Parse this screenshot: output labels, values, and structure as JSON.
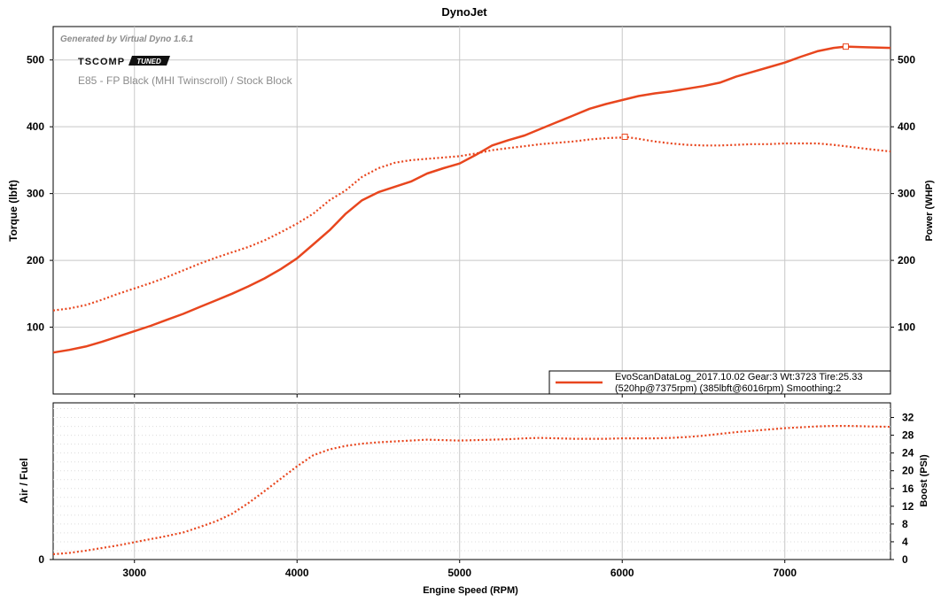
{
  "title": "DynoJet",
  "generated_by": "Generated by Virtual Dyno 1.6.1",
  "logo": {
    "left": "TSCOMP",
    "right": "TUNED"
  },
  "subtitle": "E85 - FP Black (MHI Twinscroll) / Stock Block",
  "legend": {
    "line1": "EvoScanDataLog_2017.10.02 Gear:3 Wt:3723 Tire:25.33",
    "line2": "(520hp@7375rpm) (385lbft@6016rpm) Smoothing:2"
  },
  "colors": {
    "series": "#e8461e",
    "grid_major": "#c8c8c8",
    "grid_minor": "#dcdcdc",
    "axis": "#000000"
  },
  "chart_data": [
    {
      "type": "line",
      "xlabel": "",
      "ylabel": "Torque (lbft)",
      "y2label": "Power (WHP)",
      "xlim": [
        2500,
        7650
      ],
      "ylim": [
        0,
        550
      ],
      "y2lim": [
        0,
        550
      ],
      "xticks": [
        3000,
        4000,
        5000,
        6000,
        7000
      ],
      "yticks": [
        100,
        200,
        300,
        400,
        500
      ],
      "y2ticks": [
        100,
        200,
        300,
        400,
        500
      ],
      "grid": true,
      "legend_position": "bottom-right",
      "series": [
        {
          "style": "solid",
          "axis": "left",
          "x": [
            2500,
            2600,
            2700,
            2800,
            2900,
            3000,
            3100,
            3200,
            3300,
            3400,
            3500,
            3600,
            3700,
            3800,
            3900,
            4000,
            4100,
            4200,
            4300,
            4400,
            4500,
            4600,
            4700,
            4800,
            4900,
            5000,
            5100,
            5200,
            5300,
            5400,
            5500,
            5600,
            5700,
            5800,
            5900,
            6000,
            6100,
            6200,
            6300,
            6400,
            6500,
            6600,
            6700,
            6800,
            6900,
            7000,
            7100,
            7200,
            7300,
            7375,
            7500,
            7650
          ],
          "y": [
            62,
            66,
            71,
            78,
            86,
            94,
            102,
            111,
            120,
            130,
            140,
            150,
            161,
            173,
            187,
            203,
            224,
            245,
            270,
            290,
            302,
            310,
            318,
            330,
            338,
            345,
            358,
            372,
            380,
            387,
            397,
            407,
            417,
            427,
            434,
            440,
            446,
            450,
            453,
            457,
            461,
            466,
            475,
            482,
            489,
            496,
            505,
            513,
            518,
            520,
            519,
            518
          ]
        },
        {
          "style": "dotted",
          "axis": "right",
          "x": [
            2500,
            2600,
            2700,
            2800,
            2900,
            3000,
            3100,
            3200,
            3300,
            3400,
            3500,
            3600,
            3700,
            3800,
            3900,
            4000,
            4100,
            4200,
            4300,
            4400,
            4500,
            4600,
            4700,
            4800,
            4900,
            5000,
            5100,
            5200,
            5300,
            5400,
            5500,
            5600,
            5700,
            5800,
            5900,
            6000,
            6016,
            6100,
            6200,
            6300,
            6400,
            6500,
            6600,
            6700,
            6800,
            6900,
            7000,
            7100,
            7200,
            7300,
            7400,
            7500,
            7650
          ],
          "y": [
            125,
            128,
            133,
            141,
            150,
            158,
            166,
            175,
            185,
            195,
            204,
            212,
            220,
            230,
            242,
            255,
            270,
            290,
            305,
            325,
            338,
            346,
            350,
            352,
            354,
            356,
            360,
            365,
            368,
            371,
            374,
            376,
            378,
            381,
            383,
            384,
            385,
            382,
            378,
            375,
            373,
            372,
            372,
            373,
            374,
            374,
            375,
            375,
            375,
            373,
            370,
            367,
            363
          ]
        }
      ],
      "markers": [
        {
          "series": 0,
          "x": 7375,
          "y": 520
        },
        {
          "series": 1,
          "x": 6016,
          "y": 385
        }
      ]
    },
    {
      "type": "line",
      "xlabel": "Engine Speed (RPM)",
      "ylabel": "Air / Fuel",
      "y2label": "Boost (PSI)",
      "xlim": [
        2500,
        7650
      ],
      "ylim": [
        0,
        35.3
      ],
      "y2lim": [
        0,
        35.3
      ],
      "xticks": [
        3000,
        4000,
        5000,
        6000,
        7000
      ],
      "yticks": [
        0
      ],
      "y2ticks": [
        0,
        4,
        8,
        12,
        16,
        20,
        24,
        28,
        32
      ],
      "grid": true,
      "series": [
        {
          "style": "dotted",
          "axis": "right",
          "x": [
            2500,
            2600,
            2700,
            2800,
            2900,
            3000,
            3100,
            3200,
            3300,
            3400,
            3500,
            3600,
            3700,
            3800,
            3900,
            4000,
            4100,
            4200,
            4300,
            4400,
            4500,
            4600,
            4700,
            4800,
            4900,
            5000,
            5100,
            5200,
            5300,
            5400,
            5500,
            5600,
            5700,
            5800,
            5900,
            6000,
            6100,
            6200,
            6300,
            6400,
            6500,
            6600,
            6700,
            6800,
            6900,
            7000,
            7100,
            7200,
            7300,
            7400,
            7500,
            7650
          ],
          "y": [
            1.2,
            1.5,
            2.0,
            2.6,
            3.2,
            3.9,
            4.6,
            5.3,
            6.1,
            7.3,
            8.6,
            10.3,
            12.7,
            15.4,
            18.2,
            21.0,
            23.5,
            24.8,
            25.6,
            26.1,
            26.4,
            26.6,
            26.8,
            27.0,
            26.9,
            26.8,
            26.9,
            27.0,
            27.1,
            27.3,
            27.4,
            27.3,
            27.2,
            27.2,
            27.2,
            27.3,
            27.3,
            27.3,
            27.4,
            27.6,
            27.9,
            28.3,
            28.7,
            29.0,
            29.3,
            29.6,
            29.8,
            30.0,
            30.1,
            30.1,
            30.0,
            29.9
          ]
        }
      ]
    }
  ]
}
